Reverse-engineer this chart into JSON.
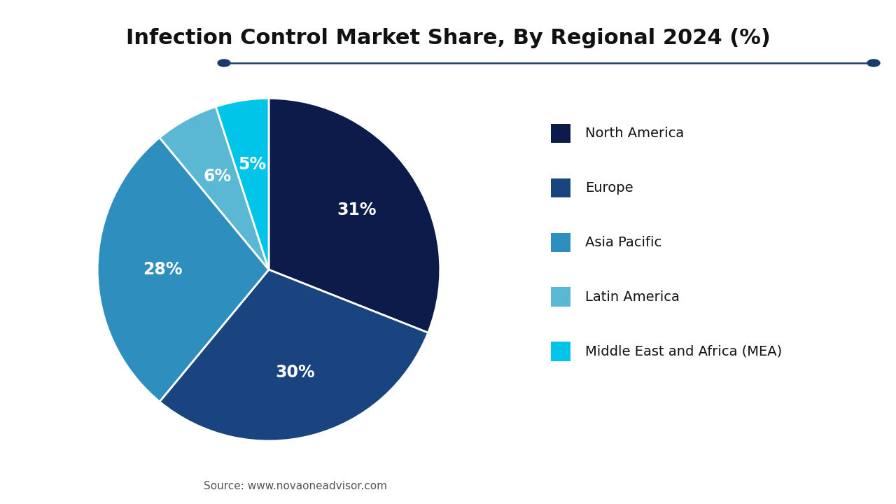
{
  "title": "Infection Control Market Share, By Regional 2024 (%)",
  "labels": [
    "North America",
    "Europe",
    "Asia Pacific",
    "Latin America",
    "Middle East and Africa (MEA)"
  ],
  "values": [
    31,
    30,
    28,
    6,
    5
  ],
  "colors": [
    "#0d1b4b",
    "#1a4480",
    "#2e8fbf",
    "#5ab8d4",
    "#00c5e8"
  ],
  "text_color": "#ffffff",
  "source_text": "Source: www.novaoneadvisor.com",
  "background_color": "#ffffff",
  "logo_bg": "#1c6ab0",
  "line_color": "#1a3a6b",
  "startangle": 90
}
